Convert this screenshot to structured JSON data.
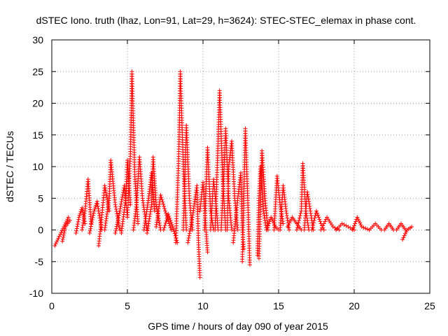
{
  "chart_data": {
    "type": "scatter",
    "title": "dSTEC Iono. truth (lhaz, Lon=91, Lat=29, h=3624): STEC-STEC_elemax in phase cont.",
    "xlabel": "GPS time / hours of day 090 of year 2015",
    "ylabel": "dSTEC  / TECUs",
    "xlim": [
      0,
      25
    ],
    "ylim": [
      -10,
      30
    ],
    "x_ticks": [
      "0",
      "5",
      "10",
      "15",
      "20",
      "25"
    ],
    "y_ticks": [
      "-10",
      "-5",
      "0",
      "5",
      "10",
      "15",
      "20",
      "25",
      "30"
    ],
    "grid": true,
    "marker": "+",
    "colors": {
      "series": "#ff0000",
      "grid": "#a0a0a0",
      "axis": "#000000"
    },
    "series": [
      {
        "name": "",
        "arcs": [
          [
            [
              0.2,
              -2.5
            ],
            [
              0.5,
              -1.0
            ],
            [
              0.8,
              0.5
            ],
            [
              1.1,
              2.0
            ]
          ],
          [
            [
              0.7,
              -1.8
            ],
            [
              0.9,
              0.5
            ],
            [
              1.2,
              1.5
            ]
          ],
          [
            [
              1.6,
              -0.5
            ],
            [
              1.8,
              2.0
            ],
            [
              2.0,
              3.5
            ],
            [
              2.2,
              1.0
            ]
          ],
          [
            [
              2.0,
              0.0
            ],
            [
              2.2,
              3.0
            ],
            [
              2.4,
              8.0
            ],
            [
              2.6,
              1.0
            ]
          ],
          [
            [
              2.5,
              -0.5
            ],
            [
              2.8,
              3.0
            ],
            [
              3.0,
              4.5
            ],
            [
              3.3,
              0.0
            ]
          ],
          [
            [
              3.1,
              -2.5
            ],
            [
              3.3,
              2.0
            ],
            [
              3.5,
              7.0
            ],
            [
              3.8,
              3.0
            ]
          ],
          [
            [
              3.5,
              0.0
            ],
            [
              3.8,
              5.0
            ],
            [
              3.9,
              11.0
            ],
            [
              4.2,
              4.0
            ],
            [
              4.5,
              0.0
            ]
          ],
          [
            [
              4.2,
              -0.5
            ],
            [
              4.5,
              3.0
            ],
            [
              4.8,
              7.0
            ],
            [
              5.0,
              2.0
            ]
          ],
          [
            [
              4.6,
              -0.5
            ],
            [
              4.9,
              5.0
            ],
            [
              5.0,
              11.0
            ],
            [
              5.2,
              4.0
            ]
          ],
          [
            [
              5.0,
              2.0
            ],
            [
              5.2,
              12.0
            ],
            [
              5.3,
              25.0
            ],
            [
              5.5,
              8.0
            ],
            [
              5.7,
              1.0
            ]
          ],
          [
            [
              5.4,
              0.0
            ],
            [
              5.6,
              4.0
            ],
            [
              5.8,
              11.5
            ],
            [
              6.0,
              5.0
            ],
            [
              6.3,
              0.0
            ]
          ],
          [
            [
              6.1,
              0.0
            ],
            [
              6.4,
              5.0
            ],
            [
              6.6,
              9.0
            ],
            [
              6.8,
              3.0
            ]
          ],
          [
            [
              6.3,
              -0.5
            ],
            [
              6.6,
              4.0
            ],
            [
              6.7,
              11.5
            ],
            [
              6.9,
              4.0
            ],
            [
              7.2,
              0.0
            ]
          ],
          [
            [
              6.9,
              0.5
            ],
            [
              7.2,
              5.5
            ],
            [
              7.5,
              3.0
            ],
            [
              7.9,
              0.0
            ]
          ],
          [
            [
              7.4,
              0.0
            ],
            [
              7.7,
              2.5
            ],
            [
              8.0,
              0.5
            ],
            [
              8.3,
              -2.0
            ]
          ],
          [
            [
              8.2,
              -2.0
            ],
            [
              8.4,
              12.0
            ],
            [
              8.5,
              25.0
            ],
            [
              8.7,
              10.0
            ],
            [
              8.9,
              0.0
            ]
          ],
          [
            [
              8.7,
              0.0
            ],
            [
              8.8,
              8.0
            ],
            [
              8.9,
              16.5
            ],
            [
              9.1,
              5.0
            ],
            [
              9.3,
              0.0
            ]
          ],
          [
            [
              9.0,
              -2.0
            ],
            [
              9.3,
              2.0
            ],
            [
              9.6,
              7.0
            ],
            [
              9.7,
              -2.0
            ],
            [
              9.8,
              -7.5
            ]
          ],
          [
            [
              9.8,
              3.0
            ],
            [
              10.0,
              7.5
            ],
            [
              10.2,
              0.0
            ],
            [
              10.3,
              -3.5
            ]
          ],
          [
            [
              10.1,
              0.0
            ],
            [
              10.3,
              13.0
            ],
            [
              10.5,
              3.0
            ],
            [
              10.7,
              0.0
            ]
          ],
          [
            [
              10.5,
              0.0
            ],
            [
              10.7,
              8.0
            ],
            [
              10.9,
              3.0
            ],
            [
              11.0,
              0.0
            ]
          ],
          [
            [
              10.8,
              0.0
            ],
            [
              11.0,
              14.0
            ],
            [
              11.1,
              22.0
            ],
            [
              11.3,
              8.0
            ],
            [
              11.5,
              0.0
            ]
          ],
          [
            [
              11.2,
              0.0
            ],
            [
              11.4,
              10.0
            ],
            [
              11.5,
              16.0
            ],
            [
              11.7,
              5.0
            ],
            [
              11.9,
              0.0
            ]
          ],
          [
            [
              11.6,
              0.0
            ],
            [
              11.7,
              10.0
            ],
            [
              11.9,
              14.0
            ],
            [
              12.1,
              5.0
            ],
            [
              12.3,
              0.0
            ]
          ],
          [
            [
              12.0,
              -2.0
            ],
            [
              12.3,
              5.0
            ],
            [
              12.5,
              9.0
            ],
            [
              12.6,
              0.0
            ],
            [
              12.7,
              -3.0
            ]
          ],
          [
            [
              12.6,
              -5.0
            ],
            [
              12.7,
              5.0
            ],
            [
              12.8,
              16.0
            ],
            [
              13.0,
              2.0
            ],
            [
              13.1,
              -5.5
            ]
          ],
          [
            [
              13.6,
              -4.0
            ],
            [
              13.7,
              5.0
            ],
            [
              13.8,
              10.0
            ],
            [
              14.0,
              3.0
            ],
            [
              14.2,
              0.0
            ]
          ],
          [
            [
              13.7,
              -4.5
            ],
            [
              13.8,
              4.0
            ],
            [
              13.9,
              12.5
            ],
            [
              14.1,
              5.0
            ],
            [
              14.3,
              0.0
            ]
          ],
          [
            [
              14.2,
              0.0
            ],
            [
              14.5,
              2.0
            ],
            [
              14.8,
              0.5
            ],
            [
              15.0,
              0.0
            ]
          ],
          [
            [
              14.7,
              0.0
            ],
            [
              14.9,
              8.5
            ],
            [
              15.1,
              4.0
            ],
            [
              15.3,
              1.0
            ]
          ],
          [
            [
              15.1,
              0.0
            ],
            [
              15.3,
              7.0
            ],
            [
              15.5,
              3.0
            ],
            [
              15.7,
              0.0
            ]
          ],
          [
            [
              15.6,
              0.5
            ],
            [
              15.9,
              2.0
            ],
            [
              16.2,
              1.0
            ],
            [
              16.5,
              0.0
            ]
          ],
          [
            [
              16.2,
              0.0
            ],
            [
              16.5,
              3.0
            ],
            [
              16.6,
              10.5
            ],
            [
              16.8,
              3.0
            ],
            [
              17.0,
              0.0
            ]
          ],
          [
            [
              16.7,
              0.0
            ],
            [
              16.9,
              6.0
            ],
            [
              17.1,
              3.0
            ],
            [
              17.3,
              0.0
            ]
          ],
          [
            [
              17.2,
              0.0
            ],
            [
              17.5,
              3.0
            ],
            [
              17.8,
              1.0
            ],
            [
              18.0,
              0.0
            ]
          ],
          [
            [
              17.8,
              0.0
            ],
            [
              18.2,
              2.0
            ],
            [
              18.6,
              0.5
            ],
            [
              19.0,
              0.0
            ]
          ],
          [
            [
              18.8,
              0.0
            ],
            [
              19.2,
              1.0
            ],
            [
              19.6,
              0.5
            ],
            [
              20.0,
              0.0
            ]
          ],
          [
            [
              19.9,
              0.0
            ],
            [
              20.2,
              2.0
            ],
            [
              20.5,
              0.5
            ],
            [
              21.0,
              0.0
            ]
          ],
          [
            [
              21.0,
              0.0
            ],
            [
              21.4,
              1.0
            ],
            [
              21.8,
              0.0
            ]
          ],
          [
            [
              22.0,
              0.0
            ],
            [
              22.3,
              1.0
            ],
            [
              22.6,
              0.0
            ]
          ],
          [
            [
              22.8,
              0.0
            ],
            [
              23.1,
              1.0
            ],
            [
              23.4,
              0.0
            ]
          ],
          [
            [
              23.2,
              -1.5
            ],
            [
              23.5,
              0.0
            ],
            [
              23.8,
              0.5
            ]
          ]
        ]
      }
    ]
  }
}
